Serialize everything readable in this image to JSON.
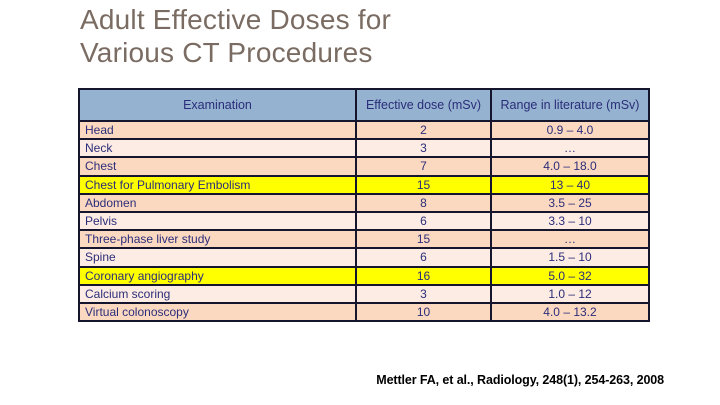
{
  "slide": {
    "title_line1": "Adult Effective Doses for",
    "title_line2": "Various CT Procedures"
  },
  "table": {
    "columns": [
      "Examination",
      "Effective dose (mSv)",
      "Range in literature (mSv)"
    ],
    "rows": [
      {
        "examination": "Head",
        "dose": "2",
        "range": "0.9 – 4.0",
        "highlight": "peach-dark"
      },
      {
        "examination": "Neck",
        "dose": "3",
        "range": "…",
        "highlight": "peach-light"
      },
      {
        "examination": "Chest",
        "dose": "7",
        "range": "4.0 – 18.0",
        "highlight": "peach-dark"
      },
      {
        "examination": "Chest for Pulmonary Embolism",
        "dose": "15",
        "range": "13 – 40",
        "highlight": "yellow"
      },
      {
        "examination": "Abdomen",
        "dose": "8",
        "range": "3.5 – 25",
        "highlight": "peach-dark"
      },
      {
        "examination": "Pelvis",
        "dose": "6",
        "range": "3.3 – 10",
        "highlight": "peach-light"
      },
      {
        "examination": "Three-phase liver study",
        "dose": "15",
        "range": "…",
        "highlight": "peach-dark"
      },
      {
        "examination": "Spine",
        "dose": "6",
        "range": "1.5 – 10",
        "highlight": "peach-light"
      },
      {
        "examination": "Coronary angiography",
        "dose": "16",
        "range": "5.0 – 32",
        "highlight": "yellow"
      },
      {
        "examination": "Calcium scoring",
        "dose": "3",
        "range": "1.0 – 12",
        "highlight": "peach-light"
      },
      {
        "examination": "Virtual colonoscopy",
        "dose": "10",
        "range": "4.0 – 13.2",
        "highlight": "peach-dark"
      }
    ]
  },
  "citation": "Mettler FA, et al., Radiology, 248(1), 254-263, 2008",
  "colors": {
    "title": "#7a6c63",
    "header_bg": "#95b3d0",
    "row_peach_dark": "#fbd9c1",
    "row_peach_light": "#fdece3",
    "row_yellow": "#ffff00",
    "border": "#15152e",
    "table_text": "#2b2d7a",
    "citation_text": "#000000"
  }
}
